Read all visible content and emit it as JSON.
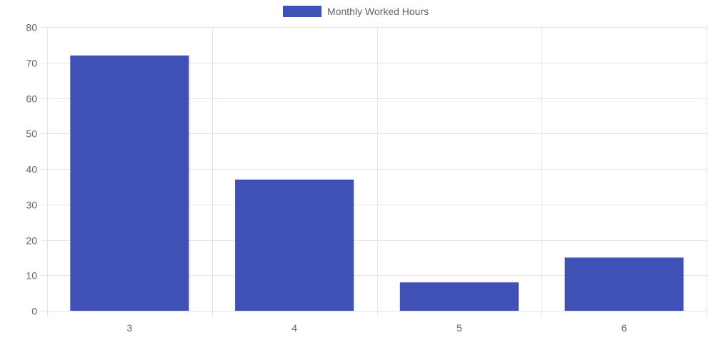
{
  "chart_data": {
    "type": "bar",
    "categories": [
      "3",
      "4",
      "5",
      "6"
    ],
    "series": [
      {
        "name": "Monthly Worked Hours",
        "values": [
          72,
          37,
          8,
          15
        ],
        "color": "#3f51b5"
      }
    ],
    "ylim": [
      0,
      80
    ],
    "yticks": [
      0,
      10,
      20,
      30,
      40,
      50,
      60,
      70,
      80
    ],
    "grid": true,
    "legend_position": "top-center"
  },
  "colors": {
    "bar": "#3f51b5",
    "grid": "#e5e5e5",
    "tick_text": "#666666"
  }
}
